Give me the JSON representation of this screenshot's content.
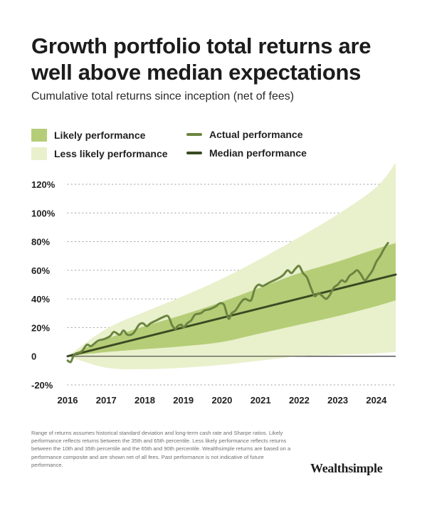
{
  "title": "Growth portfolio total returns are well above median expectations",
  "subtitle": "Cumulative total returns since inception (net of fees)",
  "legend": {
    "likely": "Likely performance",
    "less_likely": "Less likely performance",
    "actual": "Actual performance",
    "median": "Median performance"
  },
  "colors": {
    "likely": "#b5cd77",
    "less_likely": "#e9f0cc",
    "actual": "#6b8540",
    "median": "#3a4a22"
  },
  "footnote": "Range of returns assumes historical standard deviation and long-term cash rate and Sharpe ratios. Likely performance reflects returns between the 35th and 65th percentile. Less likely performance reflects returns between the 10th and 35th percentile and the 65th and 90th percentile. Wealthsimple returns are based on a performance composite and are shown net of all fees. Past performance is not indicative of future performance.",
  "brand": "Wealthsimple",
  "chart_data": {
    "type": "area",
    "y_ticks": [
      "120%",
      "100%",
      "80%",
      "60%",
      "40%",
      "20%",
      "0",
      "-20%"
    ],
    "y_tick_values": [
      120,
      100,
      80,
      60,
      40,
      20,
      0,
      -20
    ],
    "x_ticks": [
      "2016",
      "2017",
      "2018",
      "2019",
      "2020",
      "2021",
      "2022",
      "2023",
      "2024"
    ],
    "x_tick_values": [
      2016,
      2017,
      2018,
      2019,
      2020,
      2021,
      2022,
      2023,
      2024
    ],
    "xlim": [
      2016,
      2024.5
    ],
    "ylim": [
      -20,
      120
    ],
    "grid": "horizontal dotted",
    "bands": {
      "x": [
        2016,
        2017,
        2018,
        2019,
        2020,
        2021,
        2022,
        2023,
        2024,
        2024.5
      ],
      "p10": [
        0,
        -8,
        -9,
        -8,
        -6,
        -3,
        0,
        1,
        2,
        3
      ],
      "p35": [
        0,
        3,
        5,
        7,
        10,
        16,
        22,
        28,
        35,
        39
      ],
      "p65": [
        0,
        12,
        21,
        29,
        38,
        48,
        58,
        66,
        75,
        79
      ],
      "p90": [
        0,
        19,
        31,
        42,
        54,
        68,
        83,
        99,
        118,
        135
      ]
    },
    "series": [
      {
        "name": "Median performance",
        "x": [
          2016,
          2024.5
        ],
        "values": [
          0,
          57
        ]
      },
      {
        "name": "Actual performance",
        "x": [
          2016.0,
          2016.08,
          2016.15,
          2016.22,
          2016.35,
          2016.5,
          2016.6,
          2016.7,
          2016.8,
          2016.95,
          2017.1,
          2017.2,
          2017.35,
          2017.45,
          2017.55,
          2017.7,
          2017.85,
          2017.95,
          2018.05,
          2018.15,
          2018.3,
          2018.45,
          2018.6,
          2018.7,
          2018.75,
          2018.8,
          2018.85,
          2018.95,
          2019.0,
          2019.1,
          2019.2,
          2019.3,
          2019.45,
          2019.55,
          2019.7,
          2019.85,
          2019.95,
          2020.05,
          2020.12,
          2020.18,
          2020.25,
          2020.35,
          2020.5,
          2020.6,
          2020.75,
          2020.85,
          2020.95,
          2021.05,
          2021.2,
          2021.35,
          2021.5,
          2021.6,
          2021.7,
          2021.8,
          2021.9,
          2022.0,
          2022.1,
          2022.2,
          2022.3,
          2022.4,
          2022.5,
          2022.6,
          2022.7,
          2022.8,
          2022.9,
          2023.0,
          2023.1,
          2023.2,
          2023.3,
          2023.4,
          2023.5,
          2023.6,
          2023.7,
          2023.8,
          2023.9,
          2024.0,
          2024.1,
          2024.2,
          2024.3
        ],
        "values": [
          -3,
          -4,
          0,
          2,
          3,
          8,
          7,
          9,
          11,
          12,
          14,
          17,
          15,
          18,
          15,
          16,
          22,
          23,
          21,
          23,
          25,
          27,
          28,
          22,
          20,
          19,
          21,
          22,
          20,
          23,
          25,
          29,
          30,
          32,
          33,
          35,
          37,
          36,
          30,
          26,
          30,
          32,
          38,
          40,
          39,
          47,
          50,
          49,
          51,
          53,
          55,
          57,
          60,
          58,
          61,
          63,
          58,
          55,
          48,
          42,
          44,
          42,
          40,
          43,
          48,
          50,
          53,
          52,
          56,
          58,
          60,
          57,
          53,
          56,
          60,
          66,
          70,
          75,
          79
        ]
      }
    ]
  }
}
